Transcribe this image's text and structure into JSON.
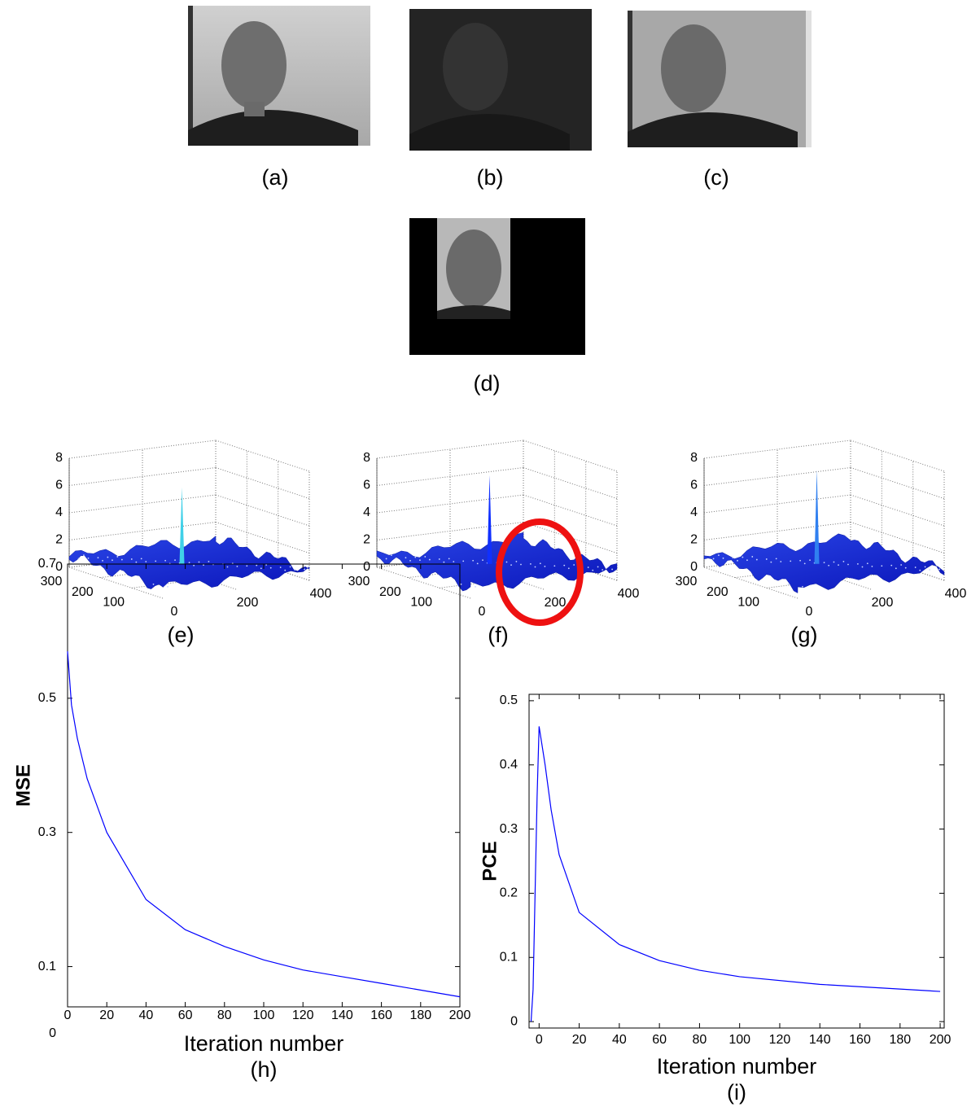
{
  "image_captions": [
    "(a)",
    "(b)",
    "(c)",
    "(d)"
  ],
  "surfaces": [
    {
      "caption": "(e)",
      "peak": 6.4,
      "xlim": [
        0,
        400
      ],
      "ylim": [
        0,
        300
      ],
      "zlim": [
        0,
        8
      ],
      "xticks": [
        0,
        200,
        400
      ],
      "yticks": [
        100,
        200,
        300
      ],
      "zticks": [
        0,
        2,
        4,
        6,
        8
      ]
    },
    {
      "caption": "(f)",
      "peak": 7.3,
      "xlim": [
        0,
        400
      ],
      "ylim": [
        0,
        300
      ],
      "zlim": [
        0,
        8
      ],
      "xticks": [
        0,
        200,
        400
      ],
      "yticks": [
        100,
        200,
        300
      ],
      "zticks": [
        0,
        2,
        4,
        6,
        8
      ]
    },
    {
      "caption": "(g)",
      "peak": 7.7,
      "xlim": [
        0,
        400
      ],
      "ylim": [
        0,
        300
      ],
      "zlim": [
        0,
        8
      ],
      "xticks": [
        0,
        200,
        400
      ],
      "yticks": [
        100,
        200,
        300
      ],
      "zticks": [
        0,
        2,
        4,
        6,
        8
      ]
    }
  ],
  "chart_data": [
    {
      "type": "line",
      "caption": "(h)",
      "xlabel": "Iteration number",
      "ylabel": "MSE",
      "x": [
        0,
        2,
        5,
        10,
        20,
        30,
        40,
        60,
        80,
        100,
        120,
        140,
        160,
        180,
        200
      ],
      "series": [
        {
          "color": "#0000ff",
          "values": [
            0.57,
            0.49,
            0.44,
            0.38,
            0.3,
            0.25,
            0.2,
            0.155,
            0.13,
            0.11,
            0.095,
            0.085,
            0.075,
            0.065,
            0.055
          ]
        }
      ],
      "xlim": [
        0,
        200
      ],
      "ylim": [
        0.04,
        0.7
      ],
      "xticks": [
        0,
        20,
        40,
        60,
        80,
        100,
        120,
        140,
        160,
        180,
        200
      ],
      "yticks": [
        0,
        0.1,
        0.3,
        0.5,
        0.7
      ]
    },
    {
      "type": "line",
      "caption": "(i)",
      "xlabel": "Iteration number",
      "ylabel": "PCE",
      "x": [
        -4,
        -3,
        -2,
        -1,
        0,
        3,
        6,
        10,
        20,
        40,
        60,
        80,
        100,
        140,
        200
      ],
      "series": [
        {
          "color": "#0000ff",
          "values": [
            0,
            0.05,
            0.2,
            0.35,
            0.46,
            0.4,
            0.33,
            0.26,
            0.17,
            0.12,
            0.095,
            0.08,
            0.07,
            0.058,
            0.047
          ]
        }
      ],
      "xlim": [
        -5,
        202
      ],
      "ylim": [
        -0.01,
        0.51
      ],
      "xticks": [
        0,
        20,
        40,
        60,
        80,
        100,
        120,
        140,
        160,
        180,
        200
      ],
      "yticks": [
        0,
        0.1,
        0.2,
        0.3,
        0.4,
        0.5
      ]
    }
  ]
}
